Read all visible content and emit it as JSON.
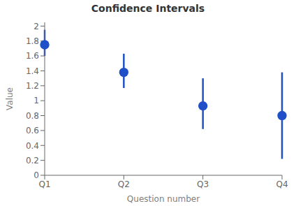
{
  "chart_data": {
    "type": "scatter",
    "title": "Confidence Intervals",
    "xlabel": "Question number",
    "ylabel": "Value",
    "categories": [
      "Q1",
      "Q2",
      "Q3",
      "Q4"
    ],
    "values": [
      1.75,
      1.38,
      0.93,
      0.8
    ],
    "upper_errors": [
      0.2,
      0.25,
      0.37,
      0.58
    ],
    "lower_errors": [
      0.15,
      0.21,
      0.31,
      0.58
    ],
    "color": "#2050c8",
    "ylim": [
      0,
      2.05
    ],
    "yticks": [
      0,
      0.2,
      0.4,
      0.6,
      0.8,
      1,
      1.2,
      1.4,
      1.6,
      1.8,
      2
    ],
    "grid": false
  }
}
